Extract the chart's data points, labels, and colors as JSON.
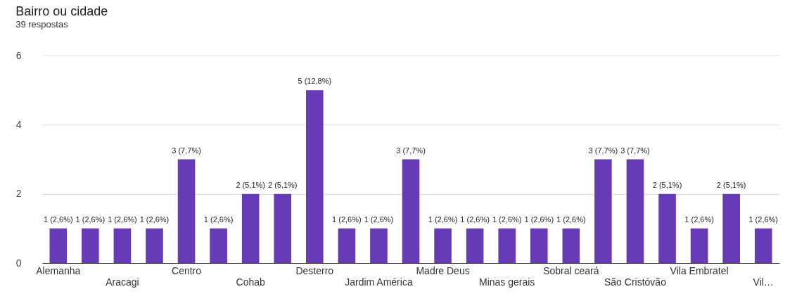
{
  "chart_data": {
    "type": "bar",
    "title": "Bairro ou cidade",
    "subtitle": "39 respostas",
    "categories": [
      "Alemanha",
      null,
      "Aracagi",
      null,
      "Centro",
      null,
      "Cohab",
      null,
      "Desterro",
      null,
      "Jardim América",
      null,
      "Madre Deus",
      null,
      "Minas gerais",
      null,
      "Sobral ceará",
      null,
      "São Cristóvão",
      null,
      "Vila Embratel",
      null,
      "Vil…"
    ],
    "values": [
      1,
      1,
      1,
      1,
      3,
      1,
      2,
      2,
      5,
      1,
      1,
      3,
      1,
      1,
      1,
      1,
      1,
      3,
      3,
      2,
      1,
      2,
      1
    ],
    "value_labels": [
      "1 (2,6%)",
      "1 (2,6%)",
      "1 (2,6%)",
      "1 (2,6%)",
      "3 (7,7%)",
      "1 (2,6%)",
      "2 (5,1%)",
      "2 (5,1%)",
      "5 (12,8%)",
      "1 (2,6%)",
      "1 (2,6%)",
      "3 (7,7%)",
      "1 (2,6%)",
      "1 (2,6%)",
      "1 (2,6%)",
      "1 (2,6%)",
      "1 (2,6%)",
      "3 (7,7%)",
      "3 (7,7%)",
      "2 (5,1%)",
      "1 (2,6%)",
      "2 (5,1%)",
      "1 (2,6%)"
    ],
    "color": "#673ab7",
    "ylim": [
      0,
      6
    ],
    "yticks": [
      0,
      2,
      4,
      6
    ],
    "grid": "y"
  }
}
